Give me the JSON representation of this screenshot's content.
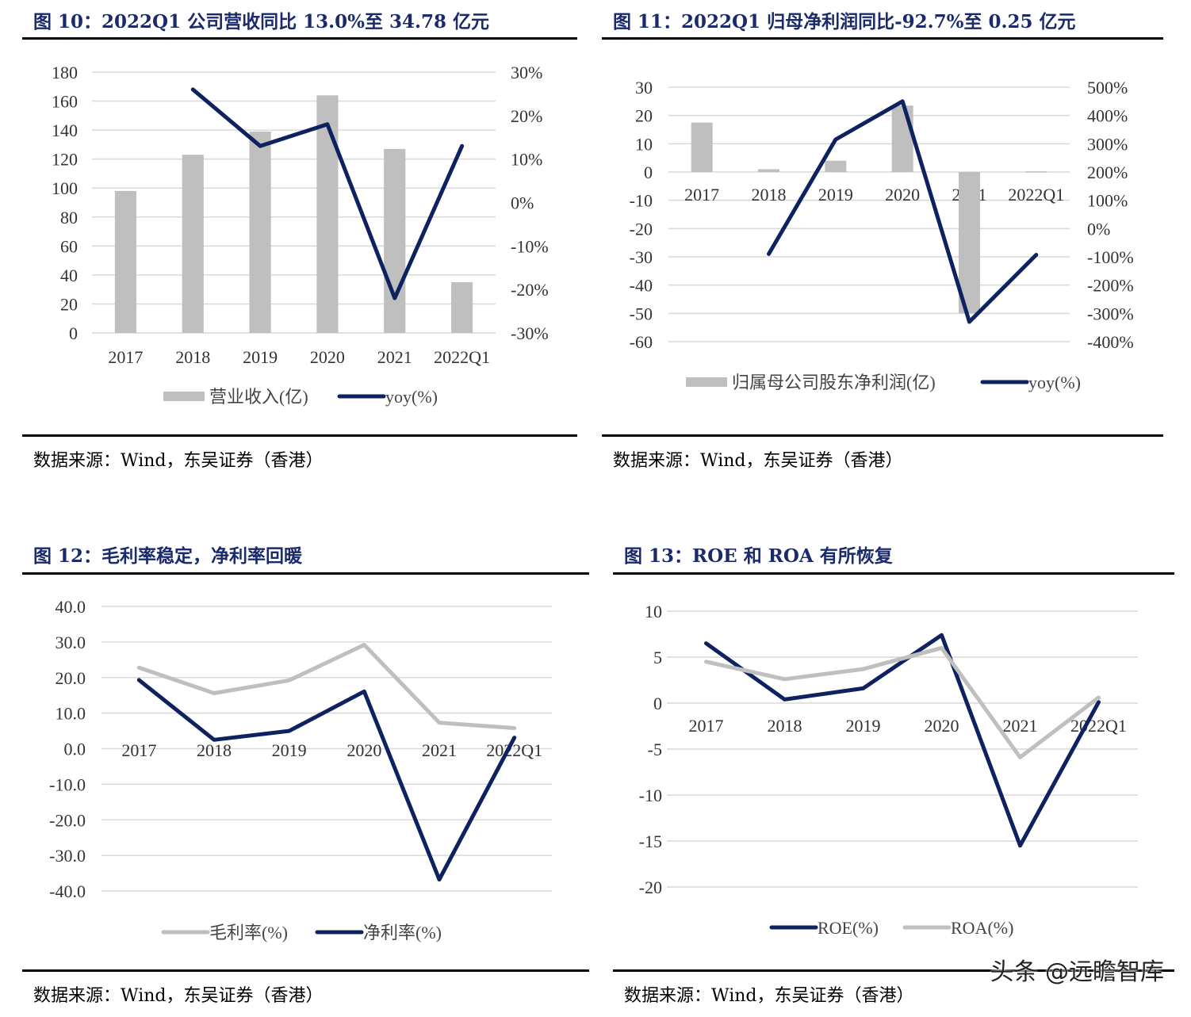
{
  "colors": {
    "bar": "#bfbfbf",
    "navy": "#0e2260",
    "gray_line": "#bfbfbf",
    "grid": "#d9d9d9",
    "title": "#1a2a6c"
  },
  "source_text": "数据来源：Wind，东吴证券（香港）",
  "watermark": "头条 @远瞻智库",
  "charts": [
    {
      "title": "图 10：2022Q1 公司营收同比 13.0%至 34.78 亿元",
      "source": "数据来源：Wind，东吴证券（香港）",
      "chart_data": {
        "type": "bar+line",
        "categories": [
          "2017",
          "2018",
          "2019",
          "2020",
          "2021",
          "2022Q1"
        ],
        "series": [
          {
            "name": "营业收入(亿)",
            "type": "bar",
            "axis": "left",
            "values": [
              98,
              123,
              139,
              164,
              127,
              35
            ]
          },
          {
            "name": "yoy(%)",
            "type": "line",
            "axis": "right",
            "values": [
              null,
              26,
              13,
              18,
              -22,
              13
            ]
          }
        ],
        "ylim": [
          0,
          180
        ],
        "yticks": [
          0,
          20,
          40,
          60,
          80,
          100,
          120,
          140,
          160,
          180
        ],
        "y2lim": [
          -30,
          30
        ],
        "y2ticks": [
          -30,
          -20,
          -10,
          0,
          10,
          20,
          30
        ],
        "y2ticklabels": [
          "-30%",
          "-20%",
          "-10%",
          "0%",
          "10%",
          "20%",
          "30%"
        ],
        "grid": true,
        "legend": "bottom"
      }
    },
    {
      "title": "图 11：2022Q1 归母净利润同比-92.7%至 0.25 亿元",
      "source": "数据来源：Wind，东吴证券（香港）",
      "chart_data": {
        "type": "bar+line",
        "categories": [
          "2017",
          "2018",
          "2019",
          "2020",
          "2021",
          "2022Q1"
        ],
        "series": [
          {
            "name": "归属母公司股东净利润(亿)",
            "type": "bar",
            "axis": "left",
            "values": [
              17.5,
              1,
              4,
              23.5,
              -50,
              0.25
            ]
          },
          {
            "name": "yoy(%)",
            "type": "line",
            "axis": "right",
            "values": [
              null,
              -90,
              315,
              450,
              -330,
              -93
            ]
          }
        ],
        "ylim": [
          -60,
          30
        ],
        "yticks": [
          -60,
          -50,
          -40,
          -30,
          -20,
          -10,
          0,
          10,
          20,
          30
        ],
        "y2lim": [
          -400,
          500
        ],
        "y2ticks": [
          -400,
          -300,
          -200,
          -100,
          0,
          100,
          200,
          300,
          400,
          500
        ],
        "y2ticklabels": [
          "-400%",
          "-300%",
          "-200%",
          "-100%",
          "0%",
          "100%",
          "200%",
          "300%",
          "400%",
          "500%"
        ],
        "grid": true,
        "legend": "bottom"
      }
    },
    {
      "title": "图 12：毛利率稳定，净利率回暖",
      "source": "数据来源：Wind，东吴证券（香港）",
      "chart_data": {
        "type": "line",
        "categories": [
          "2017",
          "2018",
          "2019",
          "2020",
          "2021",
          "2022Q1"
        ],
        "series": [
          {
            "name": "毛利率(%)",
            "values": [
              22.8,
              15.6,
              19.2,
              29.2,
              7.3,
              5.8
            ]
          },
          {
            "name": "净利率(%)",
            "values": [
              19.3,
              2.5,
              5.0,
              16.1,
              -36.8,
              3.1
            ]
          }
        ],
        "ylim": [
          -40,
          40
        ],
        "yticks": [
          -40,
          -30,
          -20,
          -10,
          0,
          10,
          20,
          30,
          40
        ],
        "yticklabels": [
          "-40.0",
          "-30.0",
          "-20.0",
          "-10.0",
          "0.0",
          "10.0",
          "20.0",
          "30.0",
          "40.0"
        ],
        "grid": true,
        "legend": "bottom"
      }
    },
    {
      "title": "图 13：ROE 和 ROA 有所恢复",
      "source": "数据来源：Wind，东吴证券（香港）",
      "chart_data": {
        "type": "line",
        "categories": [
          "2017",
          "2018",
          "2019",
          "2020",
          "2021",
          "2022Q1"
        ],
        "series": [
          {
            "name": "ROE(%)",
            "values": [
              6.5,
              0.4,
              1.6,
              7.4,
              -15.5,
              0.1
            ]
          },
          {
            "name": "ROA(%)",
            "values": [
              4.5,
              2.6,
              3.7,
              6.0,
              -5.9,
              0.6
            ]
          }
        ],
        "ylim": [
          -20,
          10
        ],
        "yticks": [
          -20,
          -15,
          -10,
          -5,
          0,
          5,
          10
        ],
        "grid": true,
        "legend": "bottom"
      }
    }
  ]
}
